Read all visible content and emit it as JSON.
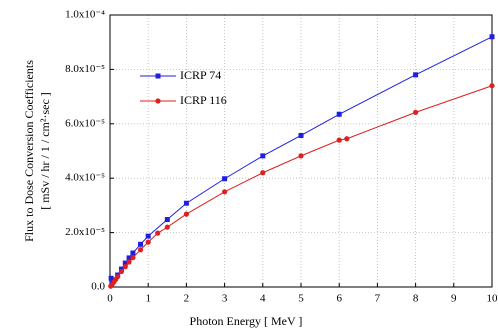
{
  "chart_data": {
    "type": "line",
    "xlabel": "Photon Energy [ MeV ]",
    "ylabel": [
      "Flux to Dose Conversion Coefficients",
      "[ mSv / hr / 1 / cm²·sec ]"
    ],
    "xlim": [
      0,
      10
    ],
    "xticks": [
      0,
      1,
      2,
      3,
      4,
      5,
      6,
      7,
      8,
      9,
      10
    ],
    "ylim": [
      0,
      0.0001
    ],
    "yticks": [
      {
        "value": 0,
        "label": "0.0"
      },
      {
        "value": 2e-05,
        "label": "2.0x10⁻⁵"
      },
      {
        "value": 4e-05,
        "label": "4.0x10⁻⁵"
      },
      {
        "value": 6e-05,
        "label": "6.0x10⁻⁵"
      },
      {
        "value": 8e-05,
        "label": "8.0x10⁻⁵"
      },
      {
        "value": 0.0001,
        "label": "1.0x10⁻⁴"
      }
    ],
    "grid": true,
    "legend": "upper left",
    "series": [
      {
        "name": "ICRP 74",
        "color": "#1f1fe0",
        "marker": "square",
        "x": [
          0.03,
          0.05,
          0.1,
          0.2,
          0.3,
          0.4,
          0.5,
          0.6,
          0.8,
          1,
          1.5,
          2,
          3,
          4,
          5,
          6,
          8,
          10
        ],
        "values": [
          3.2e-06,
          1.3e-06,
          2.5e-06,
          4.4e-06,
          6.6e-06,
          8.8e-06,
          1.07e-05,
          1.25e-05,
          1.57e-05,
          1.87e-05,
          2.48e-05,
          3.08e-05,
          3.98e-05,
          4.82e-05,
          5.57e-05,
          6.35e-05,
          7.8e-05,
          9.2e-05
        ]
      },
      {
        "name": "ICRP 116",
        "color": "#e01f1f",
        "marker": "circle",
        "x": [
          0.02,
          0.05,
          0.1,
          0.15,
          0.2,
          0.3,
          0.4,
          0.5,
          0.6,
          0.8,
          1,
          1.25,
          1.5,
          2,
          3,
          4,
          5,
          6,
          6.2,
          8,
          10
        ],
        "values": [
          3e-07,
          8e-07,
          1.8e-06,
          2.8e-06,
          3.8e-06,
          5.7e-06,
          7.5e-06,
          9.2e-06,
          1.08e-05,
          1.37e-05,
          1.65e-05,
          1.98e-05,
          2.2e-05,
          2.68e-05,
          3.5e-05,
          4.2e-05,
          4.82e-05,
          5.4e-05,
          5.45e-05,
          6.42e-05,
          7.4e-05
        ]
      }
    ]
  }
}
